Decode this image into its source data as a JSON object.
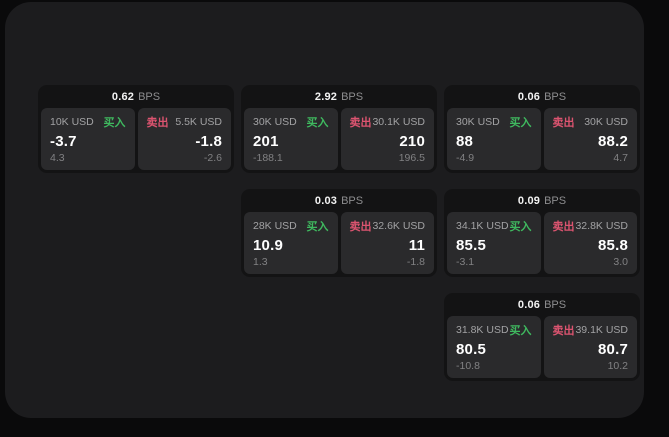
{
  "labels": {
    "bps_unit": "BPS",
    "buy": "买入",
    "sell": "卖出"
  },
  "colors": {
    "buy": "#3fb95f",
    "sell": "#dc5470",
    "outer_bg": "#0a0a0b",
    "surface_bg": "#1c1c1e",
    "card_bg": "#131314",
    "panel_bg": "#2a2a2c"
  },
  "cards": [
    {
      "row": 1,
      "col": 1,
      "bps": "0.62",
      "buy": {
        "amount": "10K USD",
        "value": "-3.7",
        "sub": "4.3"
      },
      "sell": {
        "amount": "5.5K USD",
        "value": "-1.8",
        "sub": "-2.6"
      }
    },
    {
      "row": 1,
      "col": 2,
      "bps": "2.92",
      "buy": {
        "amount": "30K USD",
        "value": "201",
        "sub": "-188.1"
      },
      "sell": {
        "amount": "30.1K USD",
        "value": "210",
        "sub": "196.5"
      }
    },
    {
      "row": 1,
      "col": 3,
      "bps": "0.06",
      "buy": {
        "amount": "30K USD",
        "value": "88",
        "sub": "-4.9"
      },
      "sell": {
        "amount": "30K USD",
        "value": "88.2",
        "sub": "4.7"
      }
    },
    {
      "row": 2,
      "col": 2,
      "bps": "0.03",
      "buy": {
        "amount": "28K USD",
        "value": "10.9",
        "sub": "1.3"
      },
      "sell": {
        "amount": "32.6K USD",
        "value": "11",
        "sub": "-1.8"
      }
    },
    {
      "row": 2,
      "col": 3,
      "bps": "0.09",
      "buy": {
        "amount": "34.1K USD",
        "value": "85.5",
        "sub": "-3.1"
      },
      "sell": {
        "amount": "32.8K USD",
        "value": "85.8",
        "sub": "3.0"
      }
    },
    {
      "row": 3,
      "col": 3,
      "bps": "0.06",
      "buy": {
        "amount": "31.8K USD",
        "value": "80.5",
        "sub": "-10.8"
      },
      "sell": {
        "amount": "39.1K USD",
        "value": "80.7",
        "sub": "10.2"
      }
    }
  ]
}
